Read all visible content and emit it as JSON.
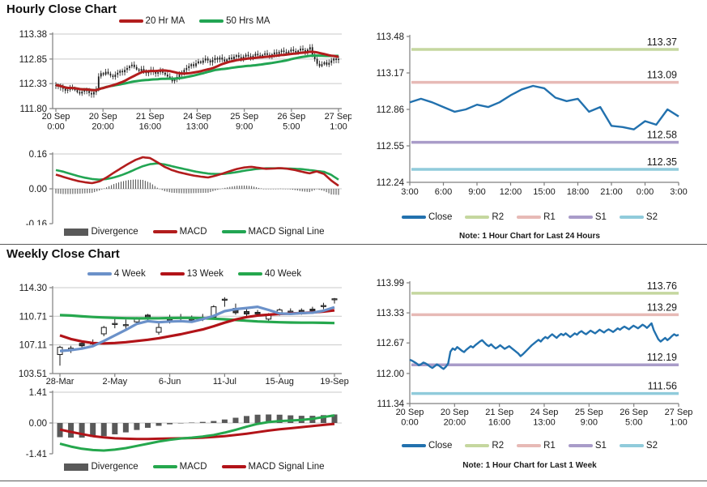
{
  "sections": {
    "hourly": {
      "title": "Hourly Close Chart",
      "note": "Note: 1 Hour Chart for Last 24 Hours"
    },
    "weekly": {
      "title": "Weekly Close Chart",
      "note": "Note: 1 Hour Chart for Last 1 Week"
    }
  },
  "colors": {
    "dark_red": "#b21d1d",
    "green": "#22a553",
    "steel_blue": "#6b91c9",
    "close_blue": "#2271ae",
    "r2": "#c5d79f",
    "r1": "#e7bab6",
    "s1": "#a99cc9",
    "s2": "#90cbdb",
    "divergence_gray": "#595959",
    "gridline": "#c9c9c9",
    "axis": "#7f7f7f",
    "text": "#1a1a1a",
    "candle": "#1a1a1a"
  },
  "chart_data": [
    {
      "id": "hourly_price",
      "type": "candlestick",
      "ylim": [
        111.8,
        113.38
      ],
      "yticks": [
        113.38,
        112.85,
        112.33,
        111.8
      ],
      "xlabels": [
        [
          "20 Sep",
          "0:00"
        ],
        [
          "20 Sep",
          "20:00"
        ],
        [
          "21 Sep",
          "16:00"
        ],
        [
          "24 Sep",
          "13:00"
        ],
        [
          "25 Sep",
          "9:00"
        ],
        [
          "26 Sep",
          "5:00"
        ],
        [
          "27 Sep",
          "1:00"
        ]
      ],
      "legend": [
        {
          "label": "20 Hr MA",
          "color": "#b21d1d"
        },
        {
          "label": "50 Hrs MA",
          "color": "#22a553"
        }
      ],
      "ma_windows": [
        20,
        50
      ],
      "close": [
        112.3,
        112.28,
        112.25,
        112.22,
        112.18,
        112.2,
        112.24,
        112.22,
        112.19,
        112.15,
        112.12,
        112.16,
        112.2,
        112.17,
        112.13,
        112.1,
        112.15,
        112.22,
        112.48,
        112.55,
        112.52,
        112.58,
        112.54,
        112.5,
        112.47,
        112.52,
        112.56,
        112.6,
        112.57,
        112.62,
        112.66,
        112.7,
        112.73,
        112.68,
        112.63,
        112.6,
        112.64,
        112.59,
        112.55,
        112.58,
        112.62,
        112.58,
        112.54,
        112.57,
        112.6,
        112.56,
        112.52,
        112.48,
        112.44,
        112.38,
        112.42,
        112.47,
        112.52,
        112.57,
        112.62,
        112.66,
        112.7,
        112.74,
        112.7,
        112.76,
        112.8,
        112.77,
        112.82,
        112.86,
        112.82,
        112.78,
        112.83,
        112.87,
        112.84,
        112.88,
        112.84,
        112.8,
        112.84,
        112.88,
        112.85,
        112.9,
        112.93,
        112.89,
        112.86,
        112.9,
        112.94,
        112.91,
        112.88,
        112.92,
        112.96,
        112.93,
        112.9,
        112.94,
        112.97,
        112.94,
        112.91,
        112.95,
        112.99,
        112.96,
        113.0,
        113.03,
        113.0,
        112.97,
        113.01,
        113.05,
        113.02,
        112.99,
        113.03,
        113.07,
        113.04,
        113.0,
        113.05,
        113.1,
        112.95,
        112.85,
        112.75,
        112.7,
        112.74,
        112.78,
        112.73,
        112.77,
        112.82,
        112.86,
        112.83,
        112.85
      ]
    },
    {
      "id": "hourly_macd",
      "type": "macd",
      "ylim": [
        -0.16,
        0.16
      ],
      "yticks": [
        0.16,
        0.0,
        -0.16
      ],
      "legend": [
        {
          "label": "Divergence",
          "color": "#595959",
          "type": "bar"
        },
        {
          "label": "MACD",
          "color": "#b21d1d"
        },
        {
          "label": "MACD Signal Line",
          "color": "#22a553"
        }
      ],
      "macd": [
        0.065,
        0.055,
        0.045,
        0.036,
        0.03,
        0.026,
        0.034,
        0.052,
        0.074,
        0.095,
        0.115,
        0.133,
        0.145,
        0.141,
        0.122,
        0.101,
        0.086,
        0.076,
        0.068,
        0.061,
        0.056,
        0.052,
        0.06,
        0.07,
        0.081,
        0.091,
        0.098,
        0.101,
        0.096,
        0.092,
        0.093,
        0.095,
        0.092,
        0.086,
        0.078,
        0.071,
        0.08,
        0.068,
        0.038,
        0.014
      ],
      "signal": [
        0.086,
        0.079,
        0.069,
        0.059,
        0.051,
        0.045,
        0.042,
        0.045,
        0.052,
        0.062,
        0.075,
        0.09,
        0.104,
        0.113,
        0.117,
        0.112,
        0.104,
        0.096,
        0.089,
        0.081,
        0.075,
        0.07,
        0.068,
        0.068,
        0.072,
        0.077,
        0.083,
        0.088,
        0.092,
        0.094,
        0.094,
        0.094,
        0.093,
        0.092,
        0.09,
        0.086,
        0.082,
        0.078,
        0.064,
        0.042
      ],
      "divergence": "macd_minus_signal"
    },
    {
      "id": "pivot_24h",
      "type": "line",
      "ylim": [
        112.24,
        113.48
      ],
      "yticks": [
        113.48,
        113.17,
        112.86,
        112.55,
        112.24
      ],
      "xlabels": [
        "3:00",
        "6:00",
        "9:00",
        "12:00",
        "15:00",
        "18:00",
        "21:00",
        "0:00",
        "3:00"
      ],
      "legend": [
        {
          "label": "Close",
          "color": "#2271ae"
        },
        {
          "label": "R2",
          "color": "#c5d79f"
        },
        {
          "label": "R1",
          "color": "#e7bab6"
        },
        {
          "label": "S1",
          "color": "#a99cc9"
        },
        {
          "label": "S2",
          "color": "#90cbdb"
        }
      ],
      "pivots": [
        {
          "name": "R2",
          "value": 113.37,
          "color": "#c5d79f"
        },
        {
          "name": "R1",
          "value": 113.09,
          "color": "#e7bab6"
        },
        {
          "name": "S1",
          "value": 112.58,
          "color": "#a99cc9"
        },
        {
          "name": "S2",
          "value": 112.35,
          "color": "#90cbdb"
        }
      ],
      "close": [
        112.92,
        112.95,
        112.92,
        112.88,
        112.84,
        112.86,
        112.9,
        112.88,
        112.92,
        112.98,
        113.03,
        113.06,
        113.04,
        112.96,
        112.93,
        112.95,
        112.84,
        112.88,
        112.72,
        112.71,
        112.69,
        112.76,
        112.73,
        112.86,
        112.8
      ]
    },
    {
      "id": "weekly_price",
      "type": "candlestick",
      "ylim": [
        103.51,
        114.3
      ],
      "yticks": [
        114.3,
        110.71,
        107.11,
        103.51
      ],
      "xlabels": [
        "28-Mar",
        "2-May",
        "6-Jun",
        "11-Jul",
        "15-Aug",
        "19-Sep"
      ],
      "legend": [
        {
          "label": "4 Week",
          "color": "#6b91c9"
        },
        {
          "label": "13 Week",
          "color": "#b21318"
        },
        {
          "label": "40 Week",
          "color": "#25a74d"
        }
      ],
      "open": [
        105.9,
        106.55,
        107.3,
        107.25,
        108.5,
        109.7,
        109.6,
        110.0,
        110.85,
        108.7,
        110.25,
        110.45,
        110.3,
        110.45,
        110.6,
        112.75,
        111.7,
        111.3,
        111.2,
        110.35,
        111.15,
        111.25,
        111.45,
        111.6,
        111.95,
        112.8
      ],
      "high": [
        107.0,
        107.0,
        107.5,
        107.8,
        109.5,
        110.6,
        110.3,
        110.6,
        111.0,
        109.9,
        110.9,
        111.0,
        110.8,
        111.0,
        112.1,
        113.1,
        112.3,
        111.6,
        111.5,
        111.1,
        111.7,
        111.7,
        111.7,
        111.9,
        112.4,
        113.0
      ],
      "low": [
        104.5,
        106.1,
        106.6,
        106.9,
        108.2,
        109.2,
        109.0,
        109.7,
        110.1,
        108.4,
        109.8,
        110.0,
        109.9,
        110.1,
        110.4,
        111.9,
        110.9,
        110.5,
        110.7,
        110.1,
        110.8,
        110.9,
        110.9,
        111.1,
        111.6,
        112.3
      ],
      "close": [
        106.8,
        106.7,
        107.0,
        107.35,
        109.3,
        109.8,
        109.65,
        110.45,
        110.5,
        109.3,
        110.35,
        110.55,
        110.35,
        110.55,
        111.9,
        112.85,
        111.15,
        111.0,
        111.0,
        110.85,
        111.5,
        111.35,
        111.2,
        111.4,
        112.05,
        112.9
      ],
      "ma4": [
        106.35,
        106.45,
        106.65,
        106.95,
        107.6,
        108.3,
        109.0,
        109.75,
        110.1,
        109.95,
        110.05,
        110.1,
        110.0,
        110.35,
        110.75,
        111.35,
        111.6,
        111.75,
        111.9,
        111.5,
        111.05,
        111.0,
        111.1,
        111.15,
        111.4,
        111.85
      ],
      "ma13": [
        108.3,
        107.85,
        107.55,
        107.35,
        107.3,
        107.35,
        107.45,
        107.6,
        107.75,
        107.95,
        108.2,
        108.45,
        108.75,
        109.05,
        109.45,
        109.9,
        110.3,
        110.6,
        110.8,
        110.9,
        111.0,
        111.05,
        111.1,
        111.2,
        111.3,
        111.45
      ],
      "ma40": [
        110.85,
        110.8,
        110.7,
        110.62,
        110.55,
        110.5,
        110.46,
        110.44,
        110.44,
        110.45,
        110.48,
        110.5,
        110.5,
        110.46,
        110.4,
        110.33,
        110.24,
        110.15,
        110.06,
        110.0,
        109.95,
        109.92,
        109.9,
        109.9,
        109.88,
        109.85
      ]
    },
    {
      "id": "weekly_macd",
      "type": "macd",
      "ylim": [
        -1.41,
        1.41
      ],
      "yticks": [
        1.41,
        0.0,
        -1.41
      ],
      "legend": [
        {
          "label": "Divergence",
          "color": "#595959",
          "type": "bar"
        },
        {
          "label": "MACD",
          "color": "#25a74d"
        },
        {
          "label": "MACD Signal Line",
          "color": "#b21318"
        }
      ],
      "macd": [
        -0.95,
        -1.08,
        -1.18,
        -1.24,
        -1.26,
        -1.22,
        -1.15,
        -1.05,
        -0.95,
        -0.85,
        -0.77,
        -0.71,
        -0.67,
        -0.62,
        -0.55,
        -0.44,
        -0.31,
        -0.17,
        -0.04,
        0.04,
        0.09,
        0.11,
        0.14,
        0.19,
        0.27,
        0.35
      ],
      "signal": [
        -0.3,
        -0.41,
        -0.51,
        -0.6,
        -0.66,
        -0.7,
        -0.72,
        -0.73,
        -0.73,
        -0.72,
        -0.71,
        -0.7,
        -0.69,
        -0.67,
        -0.64,
        -0.6,
        -0.55,
        -0.49,
        -0.42,
        -0.35,
        -0.29,
        -0.24,
        -0.19,
        -0.14,
        -0.09,
        -0.04
      ],
      "divergence": "macd_minus_signal"
    },
    {
      "id": "pivot_1wk",
      "type": "line",
      "ylim": [
        111.34,
        113.99
      ],
      "yticks": [
        113.99,
        113.33,
        112.67,
        112.0,
        111.34
      ],
      "xlabels": [
        [
          "20 Sep",
          "0:00"
        ],
        [
          "20 Sep",
          "20:00"
        ],
        [
          "21 Sep",
          "16:00"
        ],
        [
          "24 Sep",
          "13:00"
        ],
        [
          "25 Sep",
          "9:00"
        ],
        [
          "26 Sep",
          "5:00"
        ],
        [
          "27 Sep",
          "1:00"
        ]
      ],
      "legend": [
        {
          "label": "Close",
          "color": "#2271ae"
        },
        {
          "label": "R2",
          "color": "#c5d79f"
        },
        {
          "label": "R1",
          "color": "#e7bab6"
        },
        {
          "label": "S1",
          "color": "#a99cc9"
        },
        {
          "label": "S2",
          "color": "#90cbdb"
        }
      ],
      "pivots": [
        {
          "name": "R2",
          "value": 113.76,
          "color": "#c5d79f"
        },
        {
          "name": "R1",
          "value": 113.29,
          "color": "#e7bab6"
        },
        {
          "name": "S1",
          "value": 112.19,
          "color": "#a99cc9"
        },
        {
          "name": "S2",
          "value": 111.56,
          "color": "#90cbdb"
        }
      ],
      "close_ref": "hourly_price"
    }
  ]
}
